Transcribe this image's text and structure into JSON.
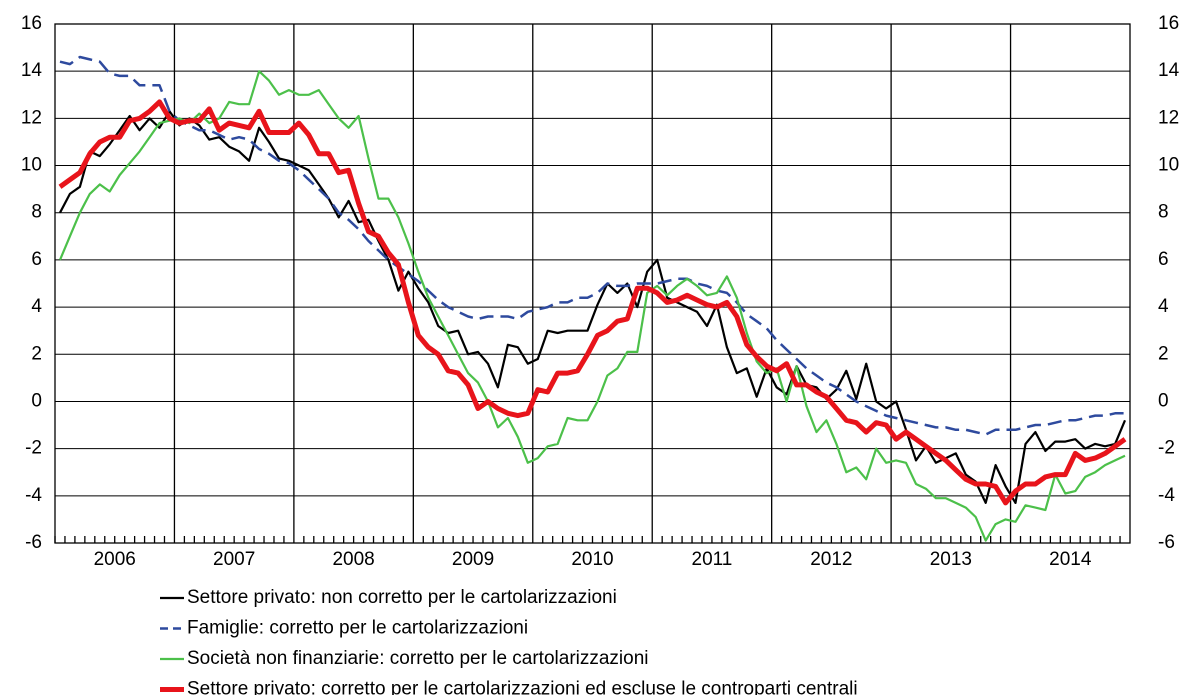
{
  "chart_data": {
    "type": "line",
    "categories": [
      null,
      null,
      null,
      null,
      null,
      null,
      "2006",
      null,
      null,
      null,
      null,
      null,
      null,
      null,
      null,
      null,
      null,
      null,
      "2007",
      null,
      null,
      null,
      null,
      null,
      null,
      null,
      null,
      null,
      null,
      null,
      "2008",
      null,
      null,
      null,
      null,
      null,
      null,
      null,
      null,
      null,
      null,
      null,
      "2009",
      null,
      null,
      null,
      null,
      null,
      null,
      null,
      null,
      null,
      null,
      null,
      "2010",
      null,
      null,
      null,
      null,
      null,
      null,
      null,
      null,
      null,
      null,
      null,
      "2011",
      null,
      null,
      null,
      null,
      null,
      null,
      null,
      null,
      null,
      null,
      null,
      "2012",
      null,
      null,
      null,
      null,
      null,
      null,
      null,
      null,
      null,
      null,
      null,
      "2013",
      null,
      null,
      null,
      null,
      null,
      null,
      null,
      null,
      null,
      null,
      null,
      "2014",
      null,
      null,
      null,
      null,
      null
    ],
    "ylim": [
      -6,
      16
    ],
    "yticks": [
      -6,
      -4,
      -2,
      0,
      2,
      4,
      6,
      8,
      10,
      12,
      14,
      16
    ],
    "grid": true,
    "legend": "bottom",
    "series": [
      {
        "name": "Settore privato: non corretto per le cartolarizzazioni",
        "color": "#000000",
        "style": "solid",
        "values": [
          8.0,
          8.8,
          9.1,
          10.6,
          10.4,
          10.9,
          11.5,
          12.1,
          11.5,
          12.0,
          11.6,
          12.3,
          11.7,
          12.0,
          11.7,
          11.1,
          11.2,
          10.8,
          10.6,
          10.2,
          11.6,
          11.0,
          10.3,
          10.2,
          10.0,
          9.8,
          9.2,
          8.6,
          7.8,
          8.5,
          7.6,
          7.7,
          6.8,
          6.0,
          4.7,
          5.5,
          4.8,
          4.2,
          3.2,
          2.9,
          3.0,
          2.0,
          2.1,
          1.6,
          0.6,
          2.4,
          2.3,
          1.6,
          1.8,
          3.0,
          2.9,
          3.0,
          3.0,
          3.0,
          4.1,
          5.0,
          4.6,
          5.0,
          4.0,
          5.5,
          6.0,
          4.4,
          4.2,
          4.0,
          3.8,
          3.2,
          4.1,
          2.3,
          1.2,
          1.4,
          0.2,
          1.4,
          0.6,
          0.3,
          1.5,
          0.7,
          0.6,
          0.1,
          0.5,
          1.3,
          0.1,
          1.6,
          0.0,
          -0.3,
          0.0,
          -1.2,
          -2.5,
          -1.9,
          -2.6,
          -2.4,
          -2.2,
          -3.1,
          -3.4,
          -4.3,
          -2.7,
          -3.6,
          -4.3,
          -1.8,
          -1.3,
          -2.1,
          -1.7,
          -1.7,
          -1.6,
          -2.0,
          -1.8,
          -1.9,
          -1.8,
          -0.8
        ]
      },
      {
        "name": "Famiglie: corretto per le cartolarizzazioni",
        "color": "#2e4a9e",
        "style": "dashed",
        "values": [
          14.4,
          14.3,
          14.6,
          14.5,
          14.4,
          13.9,
          13.8,
          13.8,
          13.4,
          13.4,
          13.4,
          12.3,
          11.9,
          11.7,
          11.5,
          11.5,
          11.3,
          11.1,
          11.2,
          11.1,
          10.7,
          10.5,
          10.2,
          10.1,
          9.8,
          9.4,
          9.0,
          8.6,
          8.0,
          7.7,
          7.3,
          6.8,
          6.4,
          6.0,
          5.7,
          5.4,
          5.1,
          4.7,
          4.3,
          4.0,
          3.8,
          3.6,
          3.5,
          3.6,
          3.6,
          3.6,
          3.5,
          3.8,
          3.9,
          4.0,
          4.2,
          4.2,
          4.4,
          4.4,
          4.6,
          5.0,
          4.9,
          4.9,
          5.0,
          5.0,
          5.0,
          5.1,
          5.2,
          5.2,
          5.0,
          4.9,
          4.7,
          4.6,
          4.2,
          3.7,
          3.4,
          3.1,
          2.6,
          2.2,
          1.8,
          1.4,
          1.1,
          0.8,
          0.6,
          0.3,
          0.0,
          -0.2,
          -0.4,
          -0.6,
          -0.7,
          -0.8,
          -0.9,
          -1.0,
          -1.1,
          -1.1,
          -1.2,
          -1.2,
          -1.3,
          -1.4,
          -1.2,
          -1.2,
          -1.2,
          -1.1,
          -1.0,
          -1.0,
          -0.9,
          -0.8,
          -0.8,
          -0.7,
          -0.6,
          -0.6,
          -0.5,
          -0.5
        ]
      },
      {
        "name": "Società non finanziarie: corretto per le cartolarizzazioni",
        "color": "#4cc04a",
        "style": "solid",
        "values": [
          6.0,
          7.0,
          8.0,
          8.8,
          9.2,
          8.9,
          9.6,
          10.1,
          10.6,
          11.2,
          11.8,
          11.9,
          12.0,
          11.8,
          12.2,
          11.8,
          12.0,
          12.7,
          12.6,
          12.6,
          14.0,
          13.6,
          13.0,
          13.2,
          13.0,
          13.0,
          13.2,
          12.6,
          12.0,
          11.6,
          12.1,
          10.3,
          8.6,
          8.6,
          7.8,
          6.7,
          5.5,
          4.4,
          3.6,
          2.8,
          2.0,
          1.2,
          0.8,
          0.0,
          -1.1,
          -0.7,
          -1.5,
          -2.6,
          -2.4,
          -1.9,
          -1.8,
          -0.7,
          -0.8,
          -0.8,
          0.0,
          1.1,
          1.4,
          2.1,
          2.1,
          4.6,
          4.9,
          4.5,
          4.9,
          5.2,
          4.9,
          4.5,
          4.6,
          5.3,
          4.4,
          2.9,
          1.7,
          1.2,
          1.4,
          0.0,
          1.5,
          -0.2,
          -1.3,
          -0.8,
          -1.8,
          -3.0,
          -2.8,
          -3.3,
          -2.0,
          -2.6,
          -2.5,
          -2.6,
          -3.5,
          -3.7,
          -4.1,
          -4.1,
          -4.3,
          -4.5,
          -4.9,
          -5.9,
          -5.2,
          -5.0,
          -5.1,
          -4.4,
          -4.5,
          -4.6,
          -3.1,
          -3.9,
          -3.8,
          -3.2,
          -3.0,
          -2.7,
          -2.5,
          -2.3
        ]
      },
      {
        "name": "Settore privato: corretto per le cartolarizzazioni ed escluse le controparti centrali",
        "color": "#e8141b",
        "style": "thick",
        "values": [
          9.1,
          9.4,
          9.7,
          10.5,
          11.0,
          11.2,
          11.2,
          11.9,
          12.0,
          12.3,
          12.7,
          12.0,
          11.8,
          11.9,
          11.9,
          12.4,
          11.5,
          11.8,
          11.7,
          11.6,
          12.3,
          11.4,
          11.4,
          11.4,
          11.8,
          11.3,
          10.5,
          10.5,
          9.7,
          9.8,
          8.4,
          7.2,
          7.0,
          6.3,
          5.8,
          4.2,
          2.8,
          2.3,
          2.0,
          1.3,
          1.2,
          0.7,
          -0.3,
          0.0,
          -0.3,
          -0.5,
          -0.6,
          -0.5,
          0.5,
          0.4,
          1.2,
          1.2,
          1.3,
          2.0,
          2.8,
          3.0,
          3.4,
          3.5,
          4.8,
          4.8,
          4.6,
          4.2,
          4.3,
          4.5,
          4.3,
          4.1,
          4.0,
          4.2,
          3.6,
          2.4,
          1.9,
          1.5,
          1.3,
          1.6,
          0.7,
          0.7,
          0.4,
          0.2,
          -0.3,
          -0.8,
          -0.9,
          -1.3,
          -0.9,
          -1.0,
          -1.6,
          -1.3,
          -1.6,
          -1.9,
          -2.2,
          -2.5,
          -2.9,
          -3.3,
          -3.5,
          -3.5,
          -3.6,
          -4.3,
          -3.8,
          -3.5,
          -3.5,
          -3.2,
          -3.1,
          -3.1,
          -2.2,
          -2.5,
          -2.4,
          -2.2,
          -1.9,
          -1.6
        ]
      }
    ]
  }
}
